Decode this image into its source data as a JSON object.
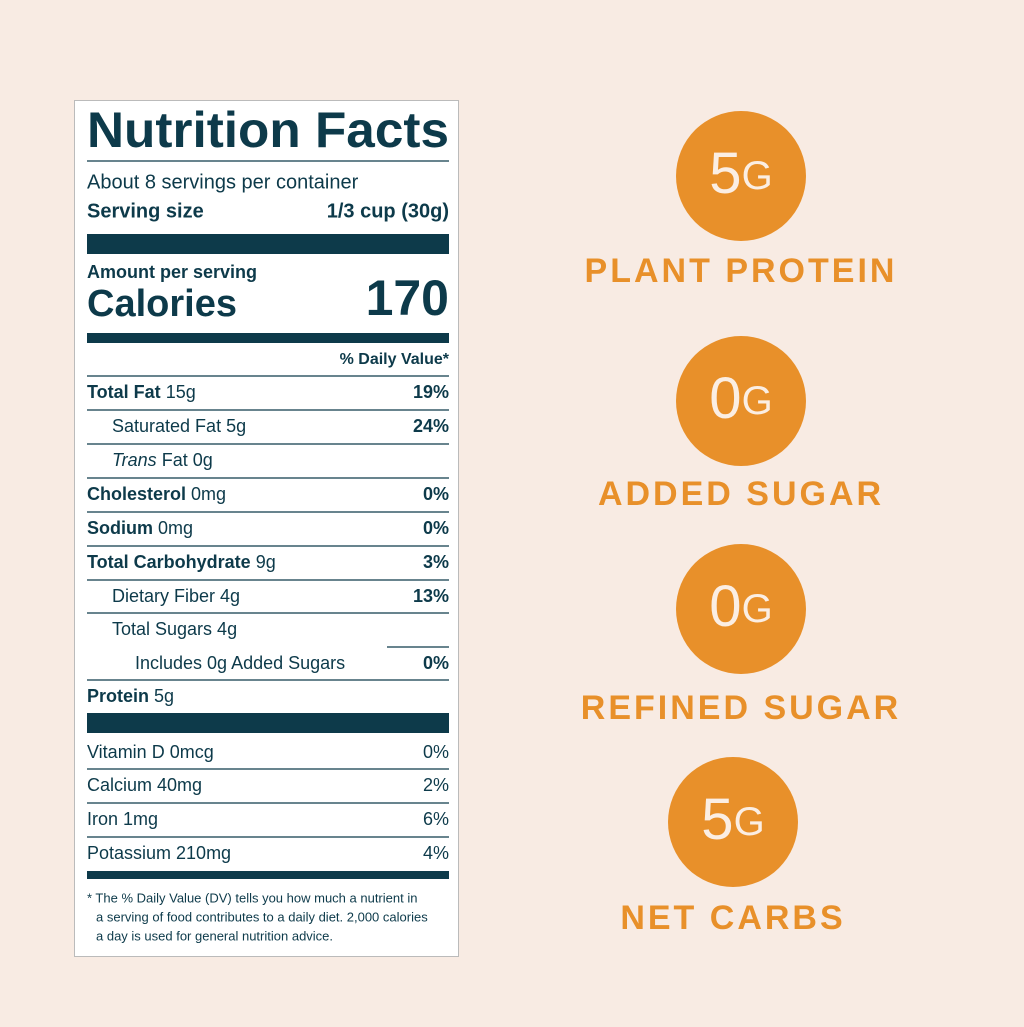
{
  "label": {
    "title": "Nutrition Facts",
    "servings": "About 8 servings per container",
    "serving_size_label": "Serving size",
    "serving_size_value": "1/3 cup (30g)",
    "amount_per_serving": "Amount per serving",
    "calories_label": "Calories",
    "calories_value": 170,
    "dv_header": "% Daily Value*",
    "rows": [
      {
        "name": "Total Fat",
        "amount": "15g",
        "dv": "19%"
      },
      {
        "name": "Saturated Fat 5g",
        "dv": "24%"
      },
      {
        "name_italic": "Trans",
        "name": "Fat 0g"
      },
      {
        "name": "Cholesterol",
        "amount": "0mg",
        "dv": "0%"
      },
      {
        "name": "Sodium",
        "amount": "0mg",
        "dv": "0%"
      },
      {
        "name": "Total Carbohydrate",
        "amount": "9g",
        "dv": "3%"
      },
      {
        "name": "Dietary Fiber 4g",
        "dv": "13%"
      },
      {
        "name": "Total Sugars 4g"
      },
      {
        "name": "Includes 0g Added Sugars",
        "dv": "0%"
      },
      {
        "name": "Protein",
        "amount": "5g"
      }
    ],
    "vitamins": [
      {
        "name": "Vitamin D 0mcg",
        "dv": "0%"
      },
      {
        "name": "Calcium 40mg",
        "dv": "2%"
      },
      {
        "name": "Iron 1mg",
        "dv": "6%"
      },
      {
        "name": "Potassium 210mg",
        "dv": "4%"
      }
    ],
    "footnote": [
      "* The % Daily Value (DV) tells you how much a nutrient in",
      "a serving of food contributes to a daily diet. 2,000 calories",
      "a day is used for general nutrition advice."
    ]
  },
  "claims": [
    {
      "number": "5",
      "unit": "G",
      "text": "PLANT PROTEIN"
    },
    {
      "number": "0",
      "unit": "G",
      "text": "ADDED SUGAR"
    },
    {
      "number": "0",
      "unit": "G",
      "text": "REFINED SUGAR"
    },
    {
      "number": "5",
      "unit": "G",
      "text": "NET CARBS"
    }
  ]
}
